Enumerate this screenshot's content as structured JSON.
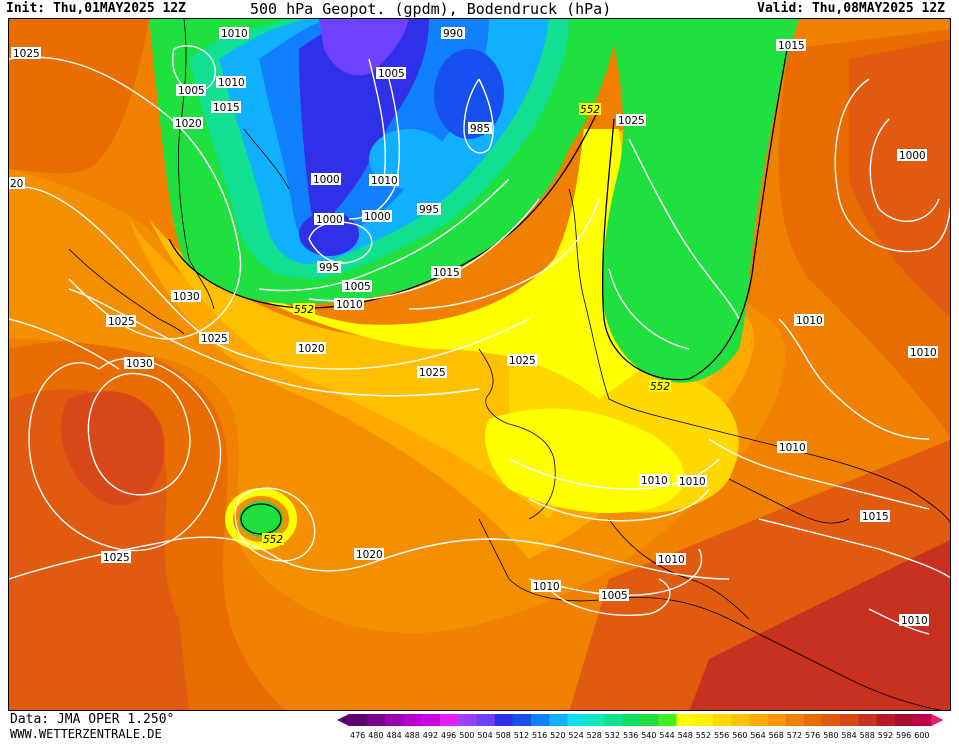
{
  "header": {
    "init": "Init: Thu,01MAY2025 12Z",
    "title": "500 hPa Geopot. (gpdm), Bodendruck (hPa)",
    "valid": "Valid: Thu,08MAY2025 12Z"
  },
  "footer": {
    "data_source": "Data: JMA OPER 1.250°",
    "website": "WWW.WETTERZENTRALE.DE"
  },
  "legend": {
    "values": [
      "476",
      "480",
      "484",
      "488",
      "492",
      "496",
      "500",
      "504",
      "508",
      "512",
      "516",
      "520",
      "524",
      "528",
      "532",
      "536",
      "540",
      "544",
      "548",
      "552",
      "556",
      "560",
      "564",
      "568",
      "572",
      "576",
      "580",
      "584",
      "588",
      "592",
      "596",
      "600"
    ],
    "colors": [
      "#5a0070",
      "#7a0090",
      "#9a00b0",
      "#b800d0",
      "#d000e8",
      "#e020ff",
      "#a040ff",
      "#7040ff",
      "#3030e8",
      "#1850f0",
      "#1080ff",
      "#10b0ff",
      "#10e0f0",
      "#10e8c0",
      "#10e090",
      "#10e060",
      "#20e040",
      "#40f020",
      "#ffff00",
      "#fff000",
      "#ffd800",
      "#ffc000",
      "#ffa800",
      "#ff9400",
      "#f08000",
      "#e86c00",
      "#e05a10",
      "#d84818",
      "#c83020",
      "#b81828",
      "#a80c30",
      "#c0004a"
    ]
  },
  "map_labels": {
    "isobars": [
      {
        "text": "1025",
        "id": "a"
      },
      {
        "text": "1010",
        "id": "b"
      },
      {
        "text": "1005",
        "id": "c"
      },
      {
        "text": "1010",
        "id": "d"
      },
      {
        "text": "1015",
        "id": "e"
      },
      {
        "text": "1020",
        "id": "f"
      },
      {
        "text": "990",
        "id": "g"
      },
      {
        "text": "1005",
        "id": "h"
      },
      {
        "text": "985",
        "id": "i"
      },
      {
        "text": "1015",
        "id": "j"
      },
      {
        "text": "1025",
        "id": "k"
      },
      {
        "text": "1000",
        "id": "l"
      },
      {
        "text": "1010",
        "id": "m"
      },
      {
        "text": "1000",
        "id": "n"
      },
      {
        "text": "1000",
        "id": "o"
      },
      {
        "text": "995",
        "id": "p"
      },
      {
        "text": "995",
        "id": "q"
      },
      {
        "text": "1005",
        "id": "r"
      },
      {
        "text": "1010",
        "id": "s"
      },
      {
        "text": "1015",
        "id": "t"
      },
      {
        "text": "1030",
        "id": "u"
      },
      {
        "text": "1025",
        "id": "v"
      },
      {
        "text": "1025",
        "id": "w"
      },
      {
        "text": "1020",
        "id": "x"
      },
      {
        "text": "1030",
        "id": "y"
      },
      {
        "text": "1025",
        "id": "z"
      },
      {
        "text": "1025",
        "id": "aa"
      },
      {
        "text": "1010",
        "id": "ab"
      },
      {
        "text": "1010",
        "id": "ac"
      },
      {
        "text": "1010",
        "id": "ad"
      },
      {
        "text": "1010",
        "id": "ae"
      },
      {
        "text": "1010",
        "id": "af"
      },
      {
        "text": "1015",
        "id": "ag"
      },
      {
        "text": "1020",
        "id": "ah"
      },
      {
        "text": "1025",
        "id": "ai"
      },
      {
        "text": "1010",
        "id": "aj"
      },
      {
        "text": "1010",
        "id": "ak"
      },
      {
        "text": "1005",
        "id": "al"
      },
      {
        "text": "1010",
        "id": "am"
      },
      {
        "text": "1000",
        "id": "an"
      },
      {
        "text": "20",
        "id": "ao"
      }
    ],
    "geopotential": [
      {
        "text": "552",
        "id": "g1"
      },
      {
        "text": "552",
        "id": "g2"
      },
      {
        "text": "552",
        "id": "g3"
      },
      {
        "text": "552",
        "id": "g4"
      }
    ]
  }
}
